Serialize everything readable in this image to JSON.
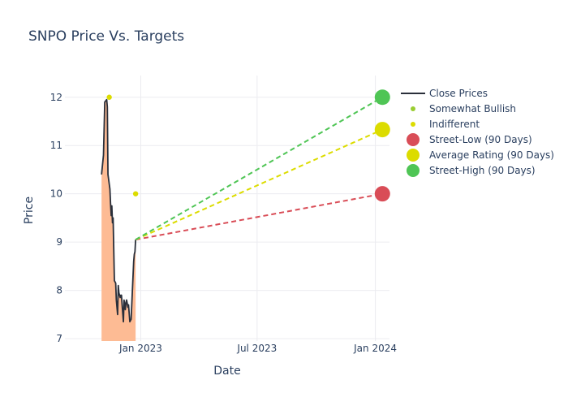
{
  "chart_data": {
    "type": "line",
    "title": "SNPO Price Vs. Targets",
    "xlabel": "Date",
    "ylabel": "Price",
    "xlim": [
      "2022-09-05",
      "2024-01-23"
    ],
    "ylim": [
      6.95,
      12.45
    ],
    "x_ticks": [
      {
        "date": "2023-01-01",
        "label": "Jan 2023"
      },
      {
        "date": "2023-07-01",
        "label": "Jul 2023"
      },
      {
        "date": "2024-01-01",
        "label": "Jan 2024"
      }
    ],
    "y_ticks": [
      7,
      8,
      9,
      10,
      11,
      12
    ],
    "grid": true,
    "legend_position": "top-right",
    "close_prices": {
      "name": "Close Prices",
      "color": "#2a2f3a",
      "fill_color": "#fdbb94",
      "points": [
        [
          "2022-11-01",
          10.4
        ],
        [
          "2022-11-04",
          10.8
        ],
        [
          "2022-11-06",
          11.9
        ],
        [
          "2022-11-09",
          11.95
        ],
        [
          "2022-11-10",
          11.8
        ],
        [
          "2022-11-11",
          10.4
        ],
        [
          "2022-11-14",
          10.1
        ],
        [
          "2022-11-15",
          9.8
        ],
        [
          "2022-11-16",
          9.55
        ],
        [
          "2022-11-17",
          9.75
        ],
        [
          "2022-11-18",
          9.4
        ],
        [
          "2022-11-19",
          9.5
        ],
        [
          "2022-11-21",
          8.2
        ],
        [
          "2022-11-23",
          8.15
        ],
        [
          "2022-11-24",
          7.8
        ],
        [
          "2022-11-26",
          7.5
        ],
        [
          "2022-11-27",
          8.1
        ],
        [
          "2022-11-28",
          7.95
        ],
        [
          "2022-11-30",
          7.85
        ],
        [
          "2022-12-01",
          7.9
        ],
        [
          "2022-12-02",
          7.9
        ],
        [
          "2022-12-03",
          7.7
        ],
        [
          "2022-12-05",
          7.35
        ],
        [
          "2022-12-06",
          7.8
        ],
        [
          "2022-12-08",
          7.6
        ],
        [
          "2022-12-09",
          7.75
        ],
        [
          "2022-12-10",
          7.8
        ],
        [
          "2022-12-12",
          7.65
        ],
        [
          "2022-12-13",
          7.7
        ],
        [
          "2022-12-15",
          7.35
        ],
        [
          "2022-12-17",
          7.4
        ],
        [
          "2022-12-19",
          8.0
        ],
        [
          "2022-12-21",
          8.6
        ],
        [
          "2022-12-22",
          8.75
        ],
        [
          "2022-12-23",
          8.8
        ],
        [
          "2022-12-24",
          9.05
        ]
      ]
    },
    "analyst_ratings": [
      {
        "name": "Somewhat Bullish",
        "color": "#9acd32",
        "points": []
      },
      {
        "name": "Indifferent",
        "color": "#dcdc00",
        "points": [
          [
            "2022-11-13",
            12.0
          ],
          [
            "2022-12-24",
            10.0
          ]
        ]
      }
    ],
    "targets": {
      "start": [
        "2022-12-24",
        9.05
      ],
      "end_date": "2024-01-12",
      "series": [
        {
          "name": "Street-Low (90 Days)",
          "value": 10.0,
          "color": "#d94d57"
        },
        {
          "name": "Average Rating (90 Days)",
          "value": 11.33,
          "color": "#dcdc00"
        },
        {
          "name": "Street-High (90 Days)",
          "value": 12.0,
          "color": "#4fc555"
        }
      ]
    }
  }
}
